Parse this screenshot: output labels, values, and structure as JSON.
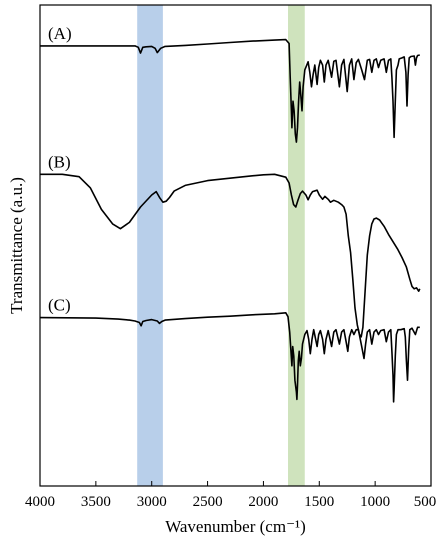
{
  "chart_data": {
    "type": "line",
    "title": "",
    "xlabel": "Wavenumber (cm⁻¹)",
    "ylabel": "Transmittance (a.u.)",
    "x_reversed": true,
    "xlim": [
      4000,
      500
    ],
    "ylim": [
      0,
      100
    ],
    "xticks": [
      4000,
      3500,
      3000,
      2500,
      2000,
      1500,
      1000,
      500
    ],
    "yticks_shown": false,
    "grid": false,
    "highlight_bands": [
      {
        "from": 3130,
        "to": 2900,
        "color": "#b8cfea"
      },
      {
        "from": 1780,
        "to": 1630,
        "color": "#cfe3bd"
      }
    ],
    "series_color": "#000000",
    "series": [
      {
        "name": "(A)",
        "points": [
          [
            4000,
            91.5
          ],
          [
            3500,
            91.5
          ],
          [
            3150,
            91.5
          ],
          [
            3120,
            91.2
          ],
          [
            3100,
            90.0
          ],
          [
            3080,
            91.2
          ],
          [
            3050,
            91.3
          ],
          [
            3000,
            91.4
          ],
          [
            2970,
            91.0
          ],
          [
            2950,
            90.1
          ],
          [
            2920,
            91.0
          ],
          [
            2880,
            91.4
          ],
          [
            2700,
            91.6
          ],
          [
            2500,
            91.9
          ],
          [
            2300,
            92.2
          ],
          [
            2100,
            92.5
          ],
          [
            1900,
            92.7
          ],
          [
            1800,
            92.8
          ],
          [
            1770,
            92.0
          ],
          [
            1760,
            85.0
          ],
          [
            1750,
            78.0
          ],
          [
            1745,
            74.5
          ],
          [
            1735,
            80.0
          ],
          [
            1725,
            78.0
          ],
          [
            1715,
            73.2
          ],
          [
            1705,
            71.5
          ],
          [
            1695,
            74.5
          ],
          [
            1685,
            80.0
          ],
          [
            1675,
            84.0
          ],
          [
            1665,
            81.0
          ],
          [
            1655,
            78.0
          ],
          [
            1645,
            83.0
          ],
          [
            1630,
            86.5
          ],
          [
            1600,
            88.2
          ],
          [
            1585,
            86.0
          ],
          [
            1570,
            83.0
          ],
          [
            1555,
            85.5
          ],
          [
            1540,
            87.5
          ],
          [
            1520,
            83.5
          ],
          [
            1505,
            87.0
          ],
          [
            1490,
            88.5
          ],
          [
            1470,
            87.5
          ],
          [
            1455,
            84.0
          ],
          [
            1440,
            87.5
          ],
          [
            1420,
            88.5
          ],
          [
            1390,
            85.0
          ],
          [
            1370,
            88.3
          ],
          [
            1350,
            88.5
          ],
          [
            1320,
            83.0
          ],
          [
            1300,
            87.5
          ],
          [
            1280,
            88.7
          ],
          [
            1250,
            82.0
          ],
          [
            1230,
            87.5
          ],
          [
            1210,
            88.8
          ],
          [
            1190,
            84.5
          ],
          [
            1170,
            88.0
          ],
          [
            1150,
            88.7
          ],
          [
            1120,
            86.5
          ],
          [
            1095,
            84.5
          ],
          [
            1070,
            88.5
          ],
          [
            1050,
            88.7
          ],
          [
            1030,
            86.0
          ],
          [
            1010,
            88.5
          ],
          [
            990,
            88.8
          ],
          [
            970,
            87.0
          ],
          [
            950,
            88.5
          ],
          [
            920,
            88.8
          ],
          [
            900,
            86.0
          ],
          [
            880,
            88.5
          ],
          [
            860,
            88.8
          ],
          [
            850,
            85.0
          ],
          [
            840,
            80.0
          ],
          [
            830,
            72.5
          ],
          [
            820,
            80.0
          ],
          [
            810,
            86.5
          ],
          [
            795,
            87.5
          ],
          [
            785,
            88.8
          ],
          [
            760,
            89.0
          ],
          [
            740,
            89.2
          ],
          [
            725,
            86.0
          ],
          [
            715,
            79.0
          ],
          [
            705,
            85.5
          ],
          [
            695,
            89.0
          ],
          [
            680,
            89.3
          ],
          [
            650,
            89.4
          ],
          [
            640,
            87.5
          ],
          [
            630,
            89.0
          ],
          [
            620,
            89.5
          ],
          [
            600,
            89.6
          ]
        ]
      },
      {
        "name": "(B)",
        "points": [
          [
            4000,
            64.8
          ],
          [
            3800,
            64.8
          ],
          [
            3650,
            64.3
          ],
          [
            3550,
            62.0
          ],
          [
            3450,
            57.5
          ],
          [
            3350,
            54.5
          ],
          [
            3280,
            53.5
          ],
          [
            3200,
            54.8
          ],
          [
            3100,
            58.0
          ],
          [
            3000,
            60.5
          ],
          [
            2960,
            61.2
          ],
          [
            2930,
            60.0
          ],
          [
            2900,
            59.0
          ],
          [
            2870,
            59.2
          ],
          [
            2840,
            60.0
          ],
          [
            2800,
            61.3
          ],
          [
            2700,
            62.5
          ],
          [
            2500,
            63.5
          ],
          [
            2300,
            64.0
          ],
          [
            2100,
            64.5
          ],
          [
            2000,
            64.7
          ],
          [
            1900,
            64.8
          ],
          [
            1800,
            64.2
          ],
          [
            1770,
            63.0
          ],
          [
            1750,
            60.5
          ],
          [
            1730,
            58.5
          ],
          [
            1710,
            58.0
          ],
          [
            1690,
            59.5
          ],
          [
            1670,
            60.8
          ],
          [
            1650,
            61.3
          ],
          [
            1620,
            60.5
          ],
          [
            1600,
            59.5
          ],
          [
            1580,
            60.5
          ],
          [
            1560,
            61.2
          ],
          [
            1520,
            61.5
          ],
          [
            1500,
            60.5
          ],
          [
            1470,
            59.6
          ],
          [
            1450,
            60.2
          ],
          [
            1420,
            59.6
          ],
          [
            1400,
            59.0
          ],
          [
            1370,
            59.4
          ],
          [
            1330,
            59.0
          ],
          [
            1300,
            58.5
          ],
          [
            1280,
            58.0
          ],
          [
            1260,
            56.5
          ],
          [
            1240,
            52.0
          ],
          [
            1220,
            48.5
          ],
          [
            1200,
            43.0
          ],
          [
            1180,
            37.0
          ],
          [
            1160,
            33.5
          ],
          [
            1140,
            31.5
          ],
          [
            1125,
            31.0
          ],
          [
            1110,
            33.0
          ],
          [
            1090,
            40.5
          ],
          [
            1070,
            48.0
          ],
          [
            1050,
            52.0
          ],
          [
            1030,
            54.5
          ],
          [
            1010,
            55.5
          ],
          [
            990,
            55.7
          ],
          [
            960,
            55.3
          ],
          [
            920,
            54.0
          ],
          [
            880,
            52.3
          ],
          [
            840,
            50.8
          ],
          [
            800,
            49.3
          ],
          [
            760,
            47.5
          ],
          [
            720,
            45.5
          ],
          [
            690,
            43.0
          ],
          [
            670,
            41.5
          ],
          [
            650,
            41.0
          ],
          [
            630,
            41.2
          ],
          [
            610,
            40.5
          ],
          [
            600,
            41.0
          ]
        ]
      },
      {
        "name": "(C)",
        "points": [
          [
            4000,
            35.0
          ],
          [
            3500,
            34.9
          ],
          [
            3300,
            34.7
          ],
          [
            3200,
            34.5
          ],
          [
            3150,
            34.3
          ],
          [
            3110,
            34.0
          ],
          [
            3095,
            33.3
          ],
          [
            3080,
            34.2
          ],
          [
            3050,
            34.4
          ],
          [
            3000,
            34.6
          ],
          [
            2950,
            34.3
          ],
          [
            2930,
            33.8
          ],
          [
            2910,
            34.2
          ],
          [
            2880,
            34.5
          ],
          [
            2700,
            34.8
          ],
          [
            2500,
            35.1
          ],
          [
            2300,
            35.3
          ],
          [
            2100,
            35.6
          ],
          [
            1900,
            35.8
          ],
          [
            1800,
            36.0
          ],
          [
            1780,
            35.2
          ],
          [
            1765,
            32.0
          ],
          [
            1755,
            28.5
          ],
          [
            1745,
            25.0
          ],
          [
            1738,
            29.0
          ],
          [
            1728,
            27.0
          ],
          [
            1718,
            22.0
          ],
          [
            1705,
            19.5
          ],
          [
            1700,
            18.0
          ],
          [
            1695,
            21.0
          ],
          [
            1688,
            26.0
          ],
          [
            1680,
            28.0
          ],
          [
            1670,
            25.0
          ],
          [
            1660,
            26.5
          ],
          [
            1650,
            29.5
          ],
          [
            1630,
            31.5
          ],
          [
            1610,
            32.3
          ],
          [
            1595,
            30.5
          ],
          [
            1580,
            27.5
          ],
          [
            1565,
            30.5
          ],
          [
            1550,
            32.5
          ],
          [
            1520,
            29.0
          ],
          [
            1505,
            31.5
          ],
          [
            1490,
            32.3
          ],
          [
            1470,
            30.5
          ],
          [
            1455,
            27.5
          ],
          [
            1440,
            30.5
          ],
          [
            1420,
            32.3
          ],
          [
            1390,
            29.0
          ],
          [
            1370,
            32.0
          ],
          [
            1350,
            32.5
          ],
          [
            1320,
            29.5
          ],
          [
            1300,
            32.0
          ],
          [
            1280,
            32.5
          ],
          [
            1260,
            30.0
          ],
          [
            1245,
            28.0
          ],
          [
            1230,
            31.0
          ],
          [
            1210,
            32.5
          ],
          [
            1190,
            31.5
          ],
          [
            1170,
            32.5
          ],
          [
            1150,
            32.5
          ],
          [
            1120,
            29.0
          ],
          [
            1100,
            26.5
          ],
          [
            1085,
            29.5
          ],
          [
            1070,
            32.0
          ],
          [
            1050,
            32.5
          ],
          [
            1030,
            29.5
          ],
          [
            1010,
            32.0
          ],
          [
            990,
            32.5
          ],
          [
            970,
            31.5
          ],
          [
            950,
            32.3
          ],
          [
            920,
            32.5
          ],
          [
            900,
            30.0
          ],
          [
            880,
            32.0
          ],
          [
            860,
            32.5
          ],
          [
            850,
            28.0
          ],
          [
            840,
            23.0
          ],
          [
            835,
            17.5
          ],
          [
            830,
            20.0
          ],
          [
            820,
            27.0
          ],
          [
            810,
            31.5
          ],
          [
            795,
            32.5
          ],
          [
            770,
            32.5
          ],
          [
            740,
            32.7
          ],
          [
            730,
            31.0
          ],
          [
            720,
            26.0
          ],
          [
            710,
            22.0
          ],
          [
            700,
            28.5
          ],
          [
            690,
            32.5
          ],
          [
            670,
            32.8
          ],
          [
            640,
            31.5
          ],
          [
            620,
            33.0
          ],
          [
            600,
            33.0
          ]
        ]
      }
    ]
  }
}
